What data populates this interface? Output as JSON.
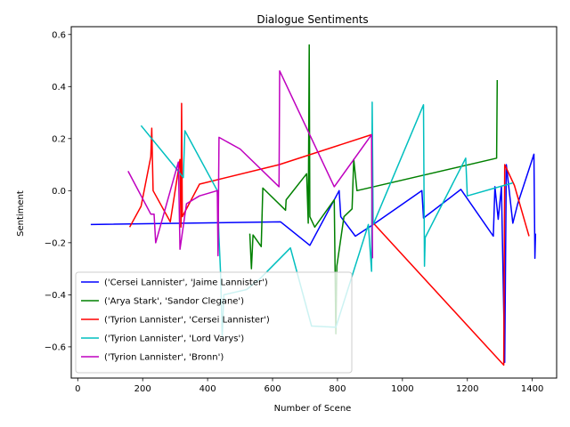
{
  "chart_data": {
    "type": "line",
    "title": "Dialogue Sentiments",
    "xlabel": "Number of Scene",
    "ylabel": "Sentiment",
    "xlim": [
      -20,
      1475
    ],
    "ylim": [
      -0.72,
      0.63
    ],
    "xticks": [
      0,
      200,
      400,
      600,
      800,
      1000,
      1200,
      1400
    ],
    "yticks": [
      -0.6,
      -0.4,
      -0.2,
      0.0,
      0.2,
      0.4,
      0.6
    ],
    "xtick_labels": [
      "0",
      "200",
      "400",
      "600",
      "800",
      "1000",
      "1200",
      "1400"
    ],
    "ytick_labels": [
      "−0.6",
      "−0.4",
      "−0.2",
      "0.0",
      "0.2",
      "0.4",
      "0.6"
    ],
    "grid": false,
    "legend_position": "lower-left",
    "series": [
      {
        "name": "('Cersei Lannister', 'Jaime Lannister')",
        "color": "#0000ff",
        "points": [
          [
            40,
            -0.13
          ],
          [
            625,
            -0.12
          ],
          [
            715,
            -0.21
          ],
          [
            805,
            0.0
          ],
          [
            810,
            -0.1
          ],
          [
            855,
            -0.175
          ],
          [
            910,
            -0.13
          ],
          [
            1060,
            0.0
          ],
          [
            1065,
            -0.105
          ],
          [
            1180,
            0.005
          ],
          [
            1280,
            -0.175
          ],
          [
            1285,
            0.015
          ],
          [
            1295,
            -0.11
          ],
          [
            1305,
            0.015
          ],
          [
            1315,
            -0.66
          ],
          [
            1320,
            0.1
          ],
          [
            1340,
            -0.125
          ],
          [
            1355,
            -0.05
          ],
          [
            1405,
            0.14
          ],
          [
            1408,
            -0.26
          ],
          [
            1410,
            -0.165
          ]
        ]
      },
      {
        "name": "('Arya Stark', 'Sandor Clegane')",
        "color": "#008000",
        "points": [
          [
            530,
            -0.165
          ],
          [
            535,
            -0.3
          ],
          [
            540,
            -0.17
          ],
          [
            565,
            -0.215
          ],
          [
            570,
            0.01
          ],
          [
            640,
            -0.075
          ],
          [
            642,
            -0.035
          ],
          [
            705,
            0.065
          ],
          [
            710,
            -0.125
          ],
          [
            713,
            0.56
          ],
          [
            715,
            -0.1
          ],
          [
            730,
            -0.14
          ],
          [
            790,
            -0.035
          ],
          [
            795,
            -0.55
          ],
          [
            798,
            -0.29
          ],
          [
            820,
            -0.1
          ],
          [
            845,
            -0.07
          ],
          [
            850,
            0.12
          ],
          [
            860,
            0.0
          ],
          [
            1290,
            0.125
          ],
          [
            1292,
            0.425
          ]
        ]
      },
      {
        "name": "('Tyrion Lannister', 'Cersei Lannister')",
        "color": "#ff0000",
        "points": [
          [
            160,
            -0.14
          ],
          [
            195,
            -0.06
          ],
          [
            225,
            0.13
          ],
          [
            228,
            0.24
          ],
          [
            232,
            0.0
          ],
          [
            285,
            -0.12
          ],
          [
            315,
            0.12
          ],
          [
            318,
            -0.14
          ],
          [
            320,
            0.335
          ],
          [
            322,
            -0.1
          ],
          [
            375,
            0.025
          ],
          [
            620,
            0.1
          ],
          [
            905,
            0.215
          ],
          [
            907,
            -0.12
          ],
          [
            1312,
            -0.67
          ],
          [
            1315,
            0.1
          ],
          [
            1345,
            0.02
          ],
          [
            1390,
            -0.175
          ]
        ]
      },
      {
        "name": "('Tyrion Lannister', 'Lord Varys')",
        "color": "#00bfbf",
        "points": [
          [
            195,
            0.25
          ],
          [
            300,
            0.09
          ],
          [
            325,
            0.05
          ],
          [
            330,
            0.23
          ],
          [
            430,
            0.0
          ],
          [
            435,
            -0.18
          ],
          [
            440,
            -0.32
          ],
          [
            445,
            -0.56
          ],
          [
            450,
            -0.4
          ],
          [
            520,
            -0.38
          ],
          [
            560,
            -0.34
          ],
          [
            655,
            -0.22
          ],
          [
            720,
            -0.52
          ],
          [
            795,
            -0.525
          ],
          [
            895,
            -0.13
          ],
          [
            905,
            -0.31
          ],
          [
            907,
            0.34
          ],
          [
            910,
            -0.13
          ],
          [
            1065,
            0.33
          ],
          [
            1068,
            -0.29
          ],
          [
            1070,
            -0.18
          ],
          [
            1195,
            0.125
          ],
          [
            1200,
            -0.02
          ],
          [
            1340,
            0.03
          ]
        ]
      },
      {
        "name": "('Tyrion Lannister', 'Bronn')",
        "color": "#bf00bf",
        "points": [
          [
            155,
            0.075
          ],
          [
            225,
            -0.09
          ],
          [
            235,
            -0.09
          ],
          [
            240,
            -0.2
          ],
          [
            310,
            0.11
          ],
          [
            315,
            -0.225
          ],
          [
            335,
            -0.05
          ],
          [
            375,
            -0.02
          ],
          [
            430,
            0.0
          ],
          [
            432,
            -0.25
          ],
          [
            435,
            0.205
          ],
          [
            500,
            0.16
          ],
          [
            620,
            0.015
          ],
          [
            622,
            0.46
          ],
          [
            790,
            0.015
          ],
          [
            905,
            0.215
          ],
          [
            908,
            -0.26
          ]
        ]
      }
    ]
  }
}
